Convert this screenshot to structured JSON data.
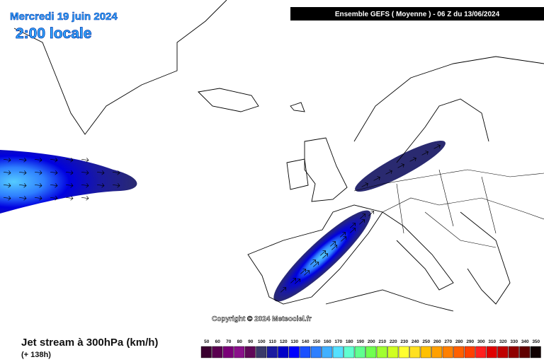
{
  "header": {
    "date": "Mercredi 19 juin 2024",
    "time": "2:00 locale",
    "model": "Ensemble GEFS  ( Moyenne )  -  06 Z du 13/06/2024"
  },
  "map": {
    "copyright": "Copyright © 2024 Meteociel.fr"
  },
  "footer": {
    "title": "Jet stream à 300hPa (km/h)",
    "lead_time": "(+ 138h)"
  },
  "legend": {
    "labels": [
      "50",
      "60",
      "70",
      "80",
      "90",
      "100",
      "110",
      "120",
      "130",
      "140",
      "150",
      "160",
      "170",
      "180",
      "190",
      "200",
      "210",
      "220",
      "230",
      "240",
      "250",
      "260",
      "270",
      "280",
      "290",
      "300",
      "310",
      "320",
      "330",
      "340",
      "350"
    ],
    "colors": [
      "#3a0030",
      "#5a0050",
      "#7a0078",
      "#8a108a",
      "#600858",
      "#3a3a6a",
      "#1a1aa0",
      "#0000c8",
      "#0000ff",
      "#1a50ff",
      "#2e7fff",
      "#40b0ff",
      "#55e0ff",
      "#60ffd0",
      "#60ff90",
      "#70ff50",
      "#a0ff30",
      "#d0ff20",
      "#ffff30",
      "#ffe020",
      "#ffc000",
      "#ffa000",
      "#ff8000",
      "#ff6000",
      "#ff4000",
      "#ff2020",
      "#e00000",
      "#c00000",
      "#900000",
      "#600000",
      "#100000"
    ]
  }
}
